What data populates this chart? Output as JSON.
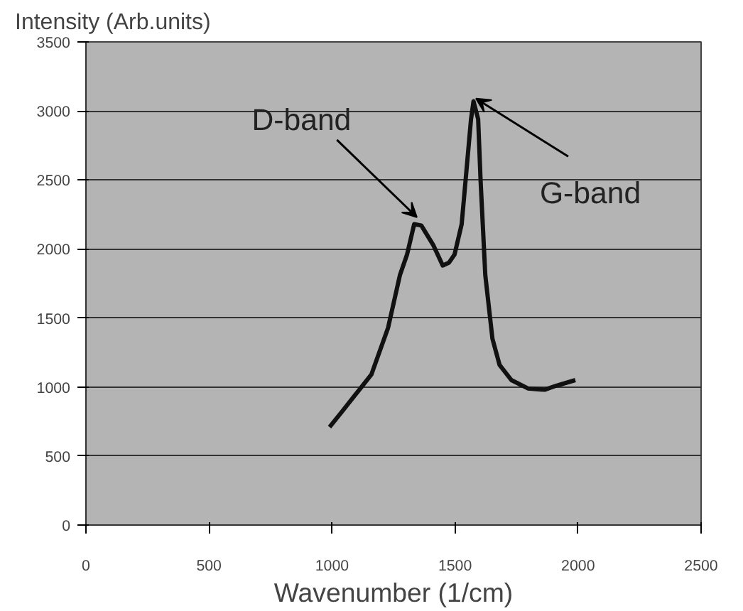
{
  "chart_data": {
    "type": "line",
    "xlabel": "Wavenumber (1/cm)",
    "ylabel": "Intensity (Arb.units)",
    "xlim": [
      0,
      2500
    ],
    "xticks": [
      0,
      500,
      1000,
      1500,
      2000,
      2500
    ],
    "ylim": [
      0,
      3500
    ],
    "yticks": [
      0,
      500,
      1000,
      1500,
      2000,
      2500,
      3000,
      3500
    ],
    "grid": "y",
    "marker": "none",
    "line_style": "solid",
    "series": [
      {
        "color": "#111111",
        "x": [
          990,
          1040,
          1093,
          1160,
          1228,
          1276,
          1305,
          1334,
          1363,
          1411,
          1450,
          1475,
          1498,
          1527,
          1546,
          1565,
          1575,
          1594,
          1604,
          1623,
          1652,
          1681,
          1729,
          1796,
          1864,
          1912,
          1989
        ],
        "values": [
          710,
          820,
          940,
          1090,
          1430,
          1810,
          1960,
          2180,
          2170,
          2030,
          1880,
          1900,
          1960,
          2180,
          2560,
          2940,
          3070,
          2940,
          2490,
          1810,
          1350,
          1160,
          1050,
          990,
          980,
          1010,
          1050
        ]
      }
    ],
    "annotations": [
      {
        "text": "D-band",
        "x": 1345,
        "y": 2230
      },
      {
        "text": "G-band",
        "x": 1585,
        "y": 3090
      }
    ]
  }
}
